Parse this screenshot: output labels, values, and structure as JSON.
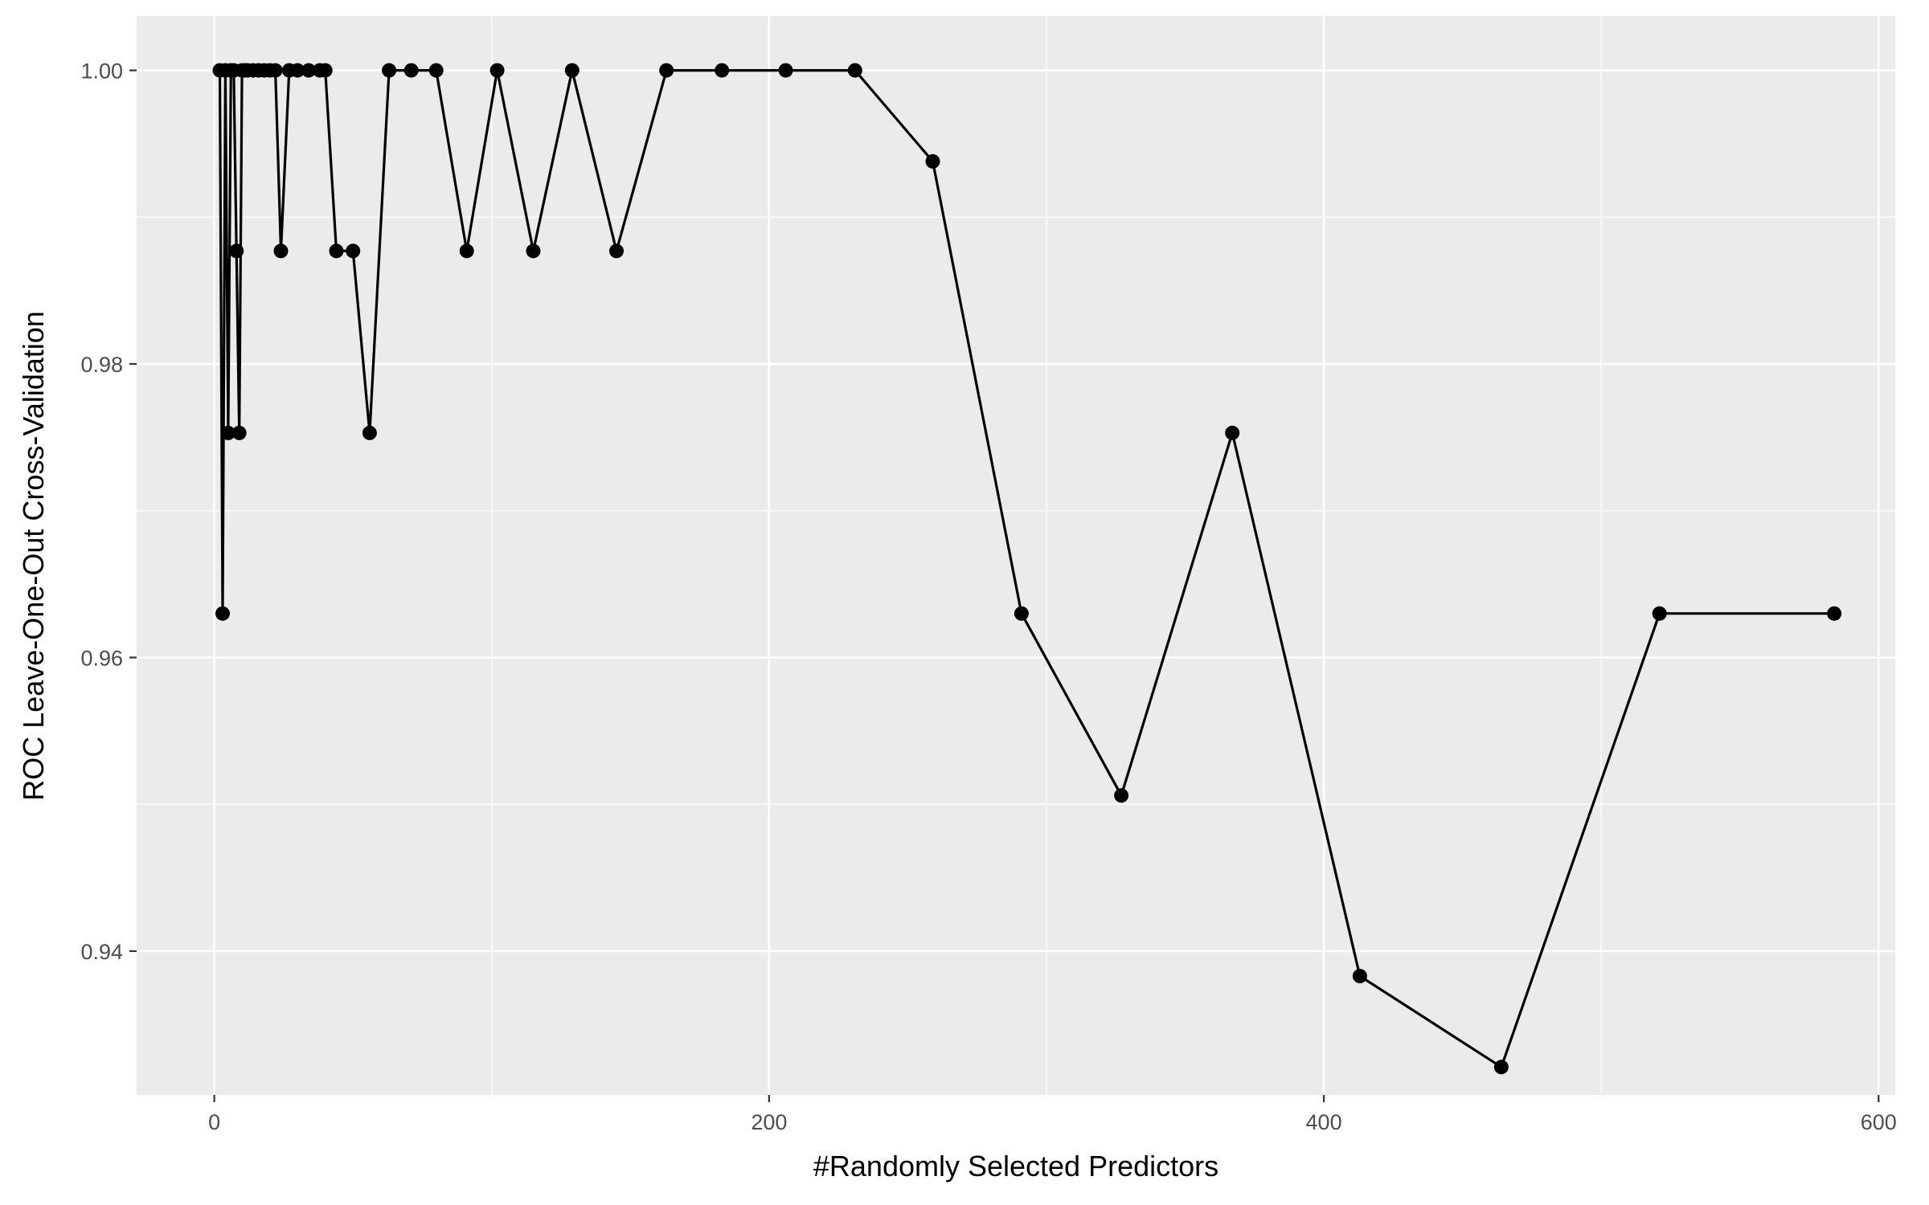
{
  "chart_data": {
    "type": "line",
    "title": "",
    "xlabel": "#Randomly Selected Predictors",
    "ylabel": "ROC Leave-One-Out Cross-Validation",
    "xlim": [
      -28,
      606
    ],
    "ylim": [
      0.9302,
      1.0037
    ],
    "x_ticks": [
      0,
      200,
      400,
      600
    ],
    "x_tick_labels": [
      "0",
      "200",
      "400",
      "600"
    ],
    "x_minor": [
      100,
      300,
      500
    ],
    "y_ticks": [
      0.94,
      0.96,
      0.98,
      1.0
    ],
    "y_tick_labels": [
      "0.94",
      "0.96",
      "0.98",
      "1.00"
    ],
    "y_minor": [
      0.95,
      0.97,
      0.99
    ],
    "grid": true,
    "legend": "none",
    "series": [
      {
        "x": [
          2,
          3,
          4,
          5,
          6,
          7,
          8,
          9,
          10,
          11,
          12,
          14,
          16,
          18,
          20,
          22,
          24,
          27,
          30,
          34,
          38,
          40,
          44,
          50,
          56,
          63,
          71,
          80,
          91,
          102,
          115,
          129,
          145,
          163,
          183,
          206,
          231,
          259,
          291,
          327,
          367,
          413,
          464,
          521,
          584
        ],
        "y": [
          1.0,
          0.963,
          1.0,
          0.9753,
          1.0,
          1.0,
          0.9877,
          0.9753,
          1.0,
          1.0,
          1.0,
          1.0,
          1.0,
          1.0,
          1.0,
          1.0,
          0.9877,
          1.0,
          1.0,
          1.0,
          1.0,
          1.0,
          0.9877,
          0.9877,
          0.9753,
          1.0,
          1.0,
          1.0,
          0.9877,
          1.0,
          0.9877,
          1.0,
          0.9877,
          1.0,
          1.0,
          1.0,
          1.0,
          0.9938,
          0.963,
          0.9506,
          0.9753,
          0.9383,
          0.9321,
          0.963,
          0.963
        ]
      }
    ]
  }
}
